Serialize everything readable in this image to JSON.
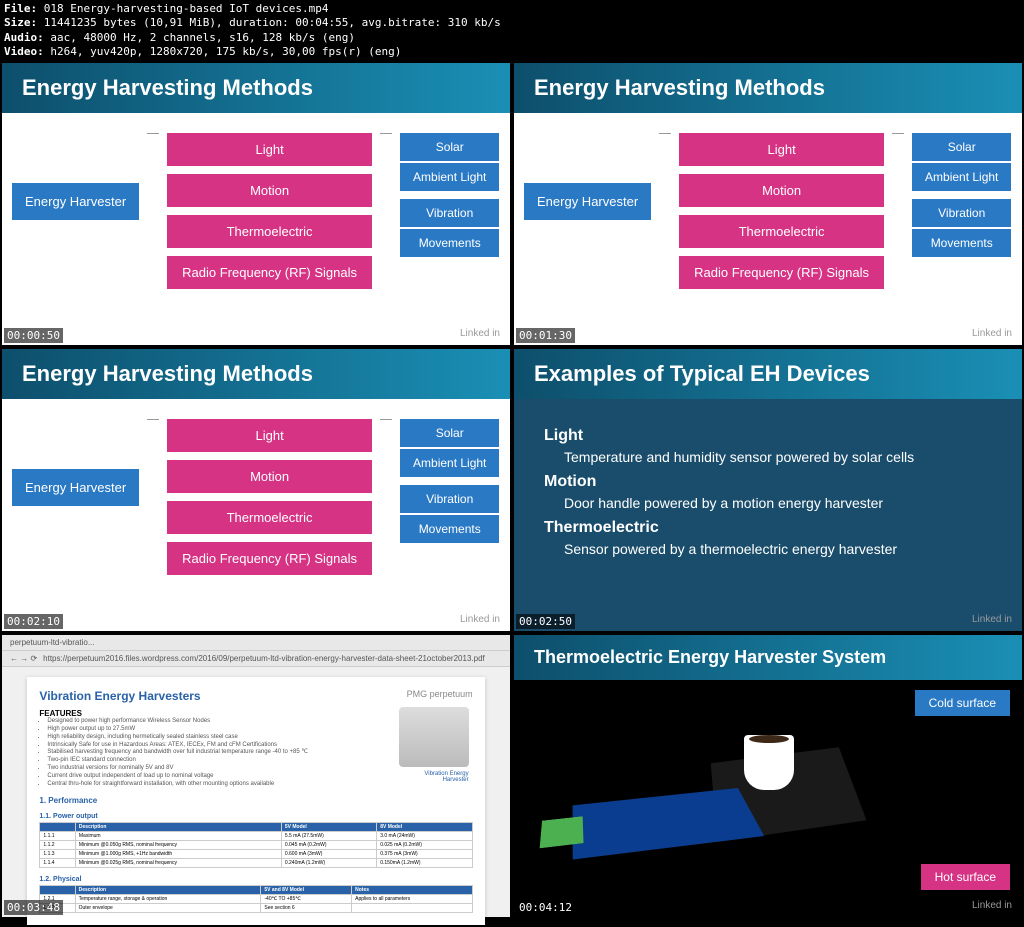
{
  "header": {
    "file": "018 Energy-harvesting-based IoT devices.mp4",
    "size": "11441235 bytes (10,91 MiB), duration: 00:04:55, avg.bitrate: 310 kb/s",
    "audio": "aac, 48000 Hz, 2 channels, s16, 128 kb/s (eng)",
    "video": "h264, yuv420p, 1280x720, 175 kb/s, 30,00 fps(r) (eng)"
  },
  "titles": {
    "harvesting": "Energy Harvesting Methods",
    "examples": "Examples of Typical EH Devices",
    "thermo": "Thermoelectric Energy Harvester System"
  },
  "diagram": {
    "root": "Energy Harvester",
    "mids": [
      "Light",
      "Motion",
      "Thermoelectric",
      "Radio Frequency (RF) Signals"
    ],
    "rights": {
      "light": [
        "Solar",
        "Ambient Light"
      ],
      "motion": [
        "Vibration",
        "Movements"
      ]
    }
  },
  "timestamps": [
    "00:00:50",
    "00:01:30",
    "00:02:10",
    "00:02:50",
    "00:03:48",
    "00:04:12"
  ],
  "examples": [
    {
      "cat": "Light",
      "desc": "Temperature and humidity sensor powered by solar cells"
    },
    {
      "cat": "Motion",
      "desc": "Door handle powered by a motion energy harvester"
    },
    {
      "cat": "Thermoelectric",
      "desc": "Sensor powered by a thermoelectric energy harvester"
    }
  ],
  "browser": {
    "tab": "perpetuum-ltd-vibratio...",
    "url": "https://perpetuum2016.files.wordpress.com/2016/09/perpetuum-ltd-vibration-energy-harvester-data-sheet-21october2013.pdf"
  },
  "doc": {
    "title": "Vibration Energy Harvesters",
    "brand": "PMG perpetuum",
    "features_label": "FEATURES",
    "features": [
      "Designed to power high performance Wireless Sensor Nodes",
      "High power output up to 27.5mW",
      "High reliability design, including hermetically sealed stainless steel case",
      "Intrinsically Safe for use in Hazardous Areas: ATEX, IECEx, FM and cFM Certifications",
      "Stabilised harvesting frequency and bandwidth over full industrial temperature range -40 to +85 ℃",
      "Two-pin IEC standard connection",
      "Two industrial versions for nominally 5V and 8V",
      "Current drive output independent of load up to nominal voltage",
      "Central thru-hole for straightforward installation, with other mounting options available"
    ],
    "img_label": "Vibration Energy Harvester",
    "section1": "1. Performance",
    "subsection1": "1.1. Power output",
    "table1": {
      "headers": [
        "",
        "Description",
        "5V Model",
        "8V Model"
      ],
      "rows": [
        [
          "1.1.1",
          "Maximum",
          "5.5 mA (27.5mW)",
          "3.0 mA (24mW)"
        ],
        [
          "1.1.2",
          "Minimum @0.050g RMS, nominal frequency",
          "0.045 mA (0.2mW)",
          "0.025 mA (0.2mW)"
        ],
        [
          "1.1.3",
          "Minimum @1.000g RMS, +1Hz bandwidth",
          "0.600 mA (3mW)",
          "0.375 mA (3mW)"
        ],
        [
          "1.1.4",
          "Minimum @0.025g RMS, nominal frequency",
          "0.240mA (1.2mW)",
          "0.150mA (1.2mW)"
        ]
      ]
    },
    "subsection2": "1.2. Physical",
    "table2": {
      "headers": [
        "",
        "Description",
        "5V and 8V Model",
        "Notes"
      ],
      "rows": [
        [
          "1.2.1",
          "Temperature range, storage & operation",
          "-40℃ TO +85℃",
          "Applies to all parameters"
        ],
        [
          "1.2.2",
          "Outer envelope",
          "See section 6",
          ""
        ]
      ]
    }
  },
  "thermo": {
    "cold": "Cold surface",
    "hot": "Hot surface"
  },
  "linkedin": "Linked in"
}
